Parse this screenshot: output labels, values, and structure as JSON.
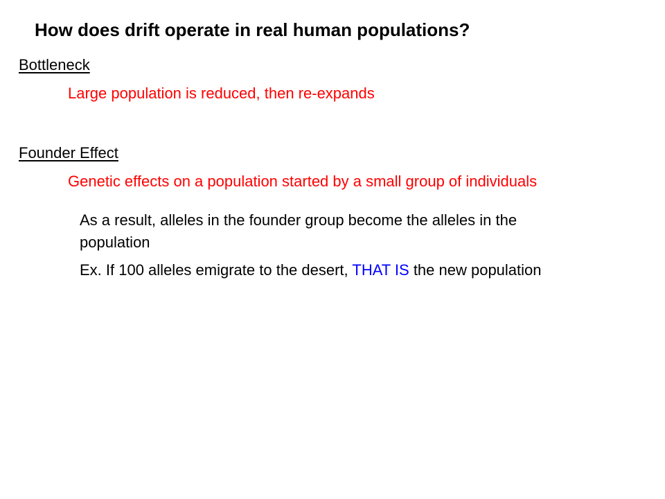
{
  "title": "How does drift operate in real human populations?",
  "colors": {
    "text": "#000000",
    "accent_red": "#ff0000",
    "accent_blue": "#0000ff",
    "background": "#ffffff"
  },
  "bottleneck": {
    "heading": "Bottleneck",
    "definition": "Large population is reduced, then re-expands"
  },
  "founder_effect": {
    "heading": "Founder Effect",
    "definition": "Genetic effects on a population started by a small group of individuals",
    "result_line_1": "As a result, alleles in the founder group become the alleles in the",
    "result_line_2": "population",
    "example_before": "Ex. If 100 alleles emigrate to the desert,",
    "example_emphasis": "THAT IS",
    "example_after": "the new population"
  }
}
